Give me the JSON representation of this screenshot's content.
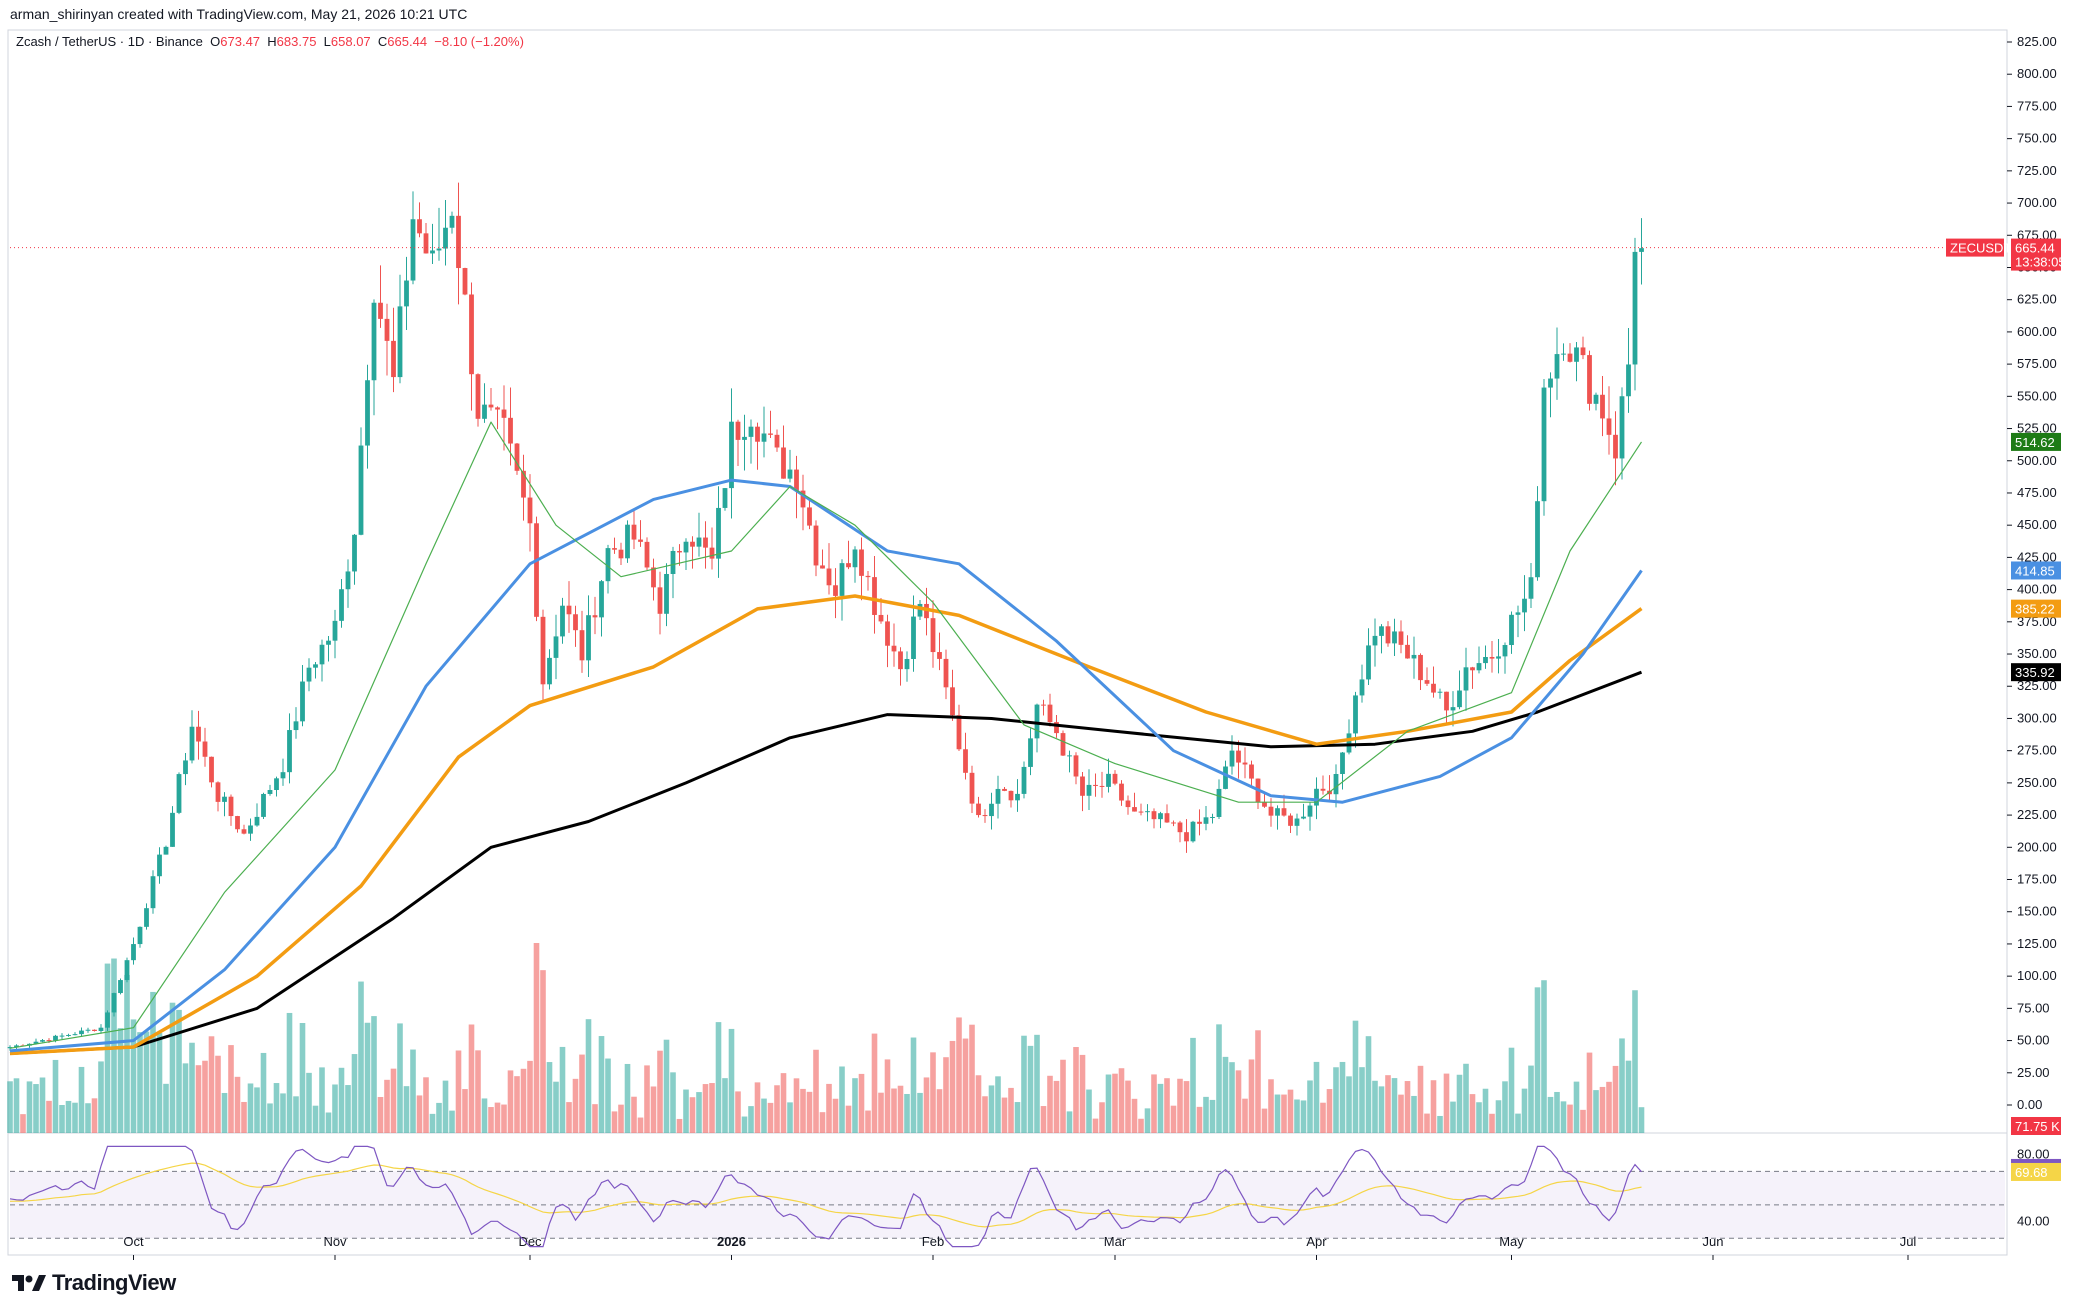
{
  "header": {
    "credit": "arman_shirinyan created with TradingView.com, May 21, 2026 10:21 UTC"
  },
  "legend": {
    "symbol": "Zcash / TetherUS · 1D · Binance",
    "open_label": "O",
    "open": "673.47",
    "high_label": "H",
    "high": "683.75",
    "low_label": "L",
    "low": "658.07",
    "close_label": "C",
    "close": "665.44",
    "change": "−8.10 (−1.20%)"
  },
  "footer": {
    "brand": "TradingView"
  },
  "colors": {
    "up": "#26a69a",
    "down": "#ef5350",
    "ma20": "#4caf50",
    "ma50": "#4a90e2",
    "ma100": "#f39c12",
    "ma200": "#000000",
    "rsi": "#7e57c2",
    "rsi_ma": "#f5d547"
  },
  "tags": [
    {
      "label": "ZECUSDT",
      "value": "665.44",
      "sub": "13:38:05",
      "color": "#f23645"
    },
    {
      "value": "514.62",
      "color": "#1e7b16"
    },
    {
      "value": "414.85",
      "color": "#4a90e2"
    },
    {
      "value": "385.22",
      "color": "#f39c12"
    },
    {
      "value": "335.92",
      "color": "#000000"
    },
    {
      "value": "71.75 K",
      "color": "#f23645"
    },
    {
      "value": "72.08",
      "color": "#7e57c2"
    },
    {
      "value": "69.68",
      "color": "#f5d547"
    }
  ],
  "chart_data": {
    "type": "candlestick",
    "title": "Zcash / TetherUS · 1D · Binance",
    "y_ticks": [
      "825.00",
      "800.00",
      "775.00",
      "750.00",
      "725.00",
      "700.00",
      "675.00",
      "650.00",
      "625.00",
      "600.00",
      "575.00",
      "550.00",
      "525.00",
      "500.00",
      "475.00",
      "450.00",
      "425.00",
      "400.00",
      "375.00",
      "350.00",
      "325.00",
      "300.00",
      "275.00",
      "250.00",
      "225.00",
      "200.00",
      "175.00",
      "150.00",
      "125.00",
      "100.00",
      "75.00",
      "50.00",
      "25.00",
      "0.00"
    ],
    "ylim": [
      0,
      825
    ],
    "rsi_ticks": [
      "80.00",
      "40.00"
    ],
    "x_ticks": [
      {
        "label": "Oct",
        "date": "2025-10-01"
      },
      {
        "label": "Nov",
        "date": "2025-11-01"
      },
      {
        "label": "Dec",
        "date": "2025-12-01"
      },
      {
        "label": "2026",
        "date": "2026-01-01",
        "bold": true
      },
      {
        "label": "Feb",
        "date": "2026-02-01"
      },
      {
        "label": "Mar",
        "date": "2026-03-01"
      },
      {
        "label": "Apr",
        "date": "2026-04-01"
      },
      {
        "label": "May",
        "date": "2026-05-01"
      },
      {
        "label": "Jun",
        "date": "2026-06-01"
      },
      {
        "label": "Jul",
        "date": "2026-07-01"
      }
    ],
    "x_start": "2025-09-12",
    "key_closes": [
      [
        "2025-09-12",
        45
      ],
      [
        "2025-09-26",
        60
      ],
      [
        "2025-10-01",
        125
      ],
      [
        "2025-10-06",
        205
      ],
      [
        "2025-10-10",
        295
      ],
      [
        "2025-10-14",
        240
      ],
      [
        "2025-10-18",
        210
      ],
      [
        "2025-10-24",
        265
      ],
      [
        "2025-10-28",
        340
      ],
      [
        "2025-11-01",
        370
      ],
      [
        "2025-11-04",
        450
      ],
      [
        "2025-11-07",
        640
      ],
      [
        "2025-11-10",
        560
      ],
      [
        "2025-11-13",
        690
      ],
      [
        "2025-11-16",
        650
      ],
      [
        "2025-11-19",
        700
      ],
      [
        "2025-11-23",
        540
      ],
      [
        "2025-11-27",
        520
      ],
      [
        "2025-12-01",
        450
      ],
      [
        "2025-12-03",
        330
      ],
      [
        "2025-12-06",
        390
      ],
      [
        "2025-12-09",
        350
      ],
      [
        "2025-12-13",
        430
      ],
      [
        "2025-12-17",
        440
      ],
      [
        "2025-12-21",
        390
      ],
      [
        "2025-12-25",
        450
      ],
      [
        "2025-12-29",
        420
      ],
      [
        "2026-01-01",
        520
      ],
      [
        "2026-01-04",
        540
      ],
      [
        "2026-01-08",
        500
      ],
      [
        "2026-01-11",
        490
      ],
      [
        "2026-01-14",
        430
      ],
      [
        "2026-01-17",
        400
      ],
      [
        "2026-01-20",
        440
      ],
      [
        "2026-01-23",
        390
      ],
      [
        "2026-01-27",
        340
      ],
      [
        "2026-01-30",
        390
      ],
      [
        "2026-02-03",
        320
      ],
      [
        "2026-02-06",
        260
      ],
      [
        "2026-02-08",
        220
      ],
      [
        "2026-02-11",
        250
      ],
      [
        "2026-02-14",
        240
      ],
      [
        "2026-02-17",
        310
      ],
      [
        "2026-02-20",
        290
      ],
      [
        "2026-02-24",
        240
      ],
      [
        "2026-02-28",
        250
      ],
      [
        "2026-03-04",
        225
      ],
      [
        "2026-03-08",
        220
      ],
      [
        "2026-03-12",
        210
      ],
      [
        "2026-03-16",
        225
      ],
      [
        "2026-03-19",
        275
      ],
      [
        "2026-03-22",
        250
      ],
      [
        "2026-03-25",
        225
      ],
      [
        "2026-03-29",
        220
      ],
      [
        "2026-04-01",
        245
      ],
      [
        "2026-04-04",
        250
      ],
      [
        "2026-04-07",
        320
      ],
      [
        "2026-04-10",
        370
      ],
      [
        "2026-04-14",
        355
      ],
      [
        "2026-04-18",
        330
      ],
      [
        "2026-04-21",
        305
      ],
      [
        "2026-04-24",
        340
      ],
      [
        "2026-04-28",
        350
      ],
      [
        "2026-05-01",
        375
      ],
      [
        "2026-05-04",
        400
      ],
      [
        "2026-05-06",
        560
      ],
      [
        "2026-05-09",
        600
      ],
      [
        "2026-05-12",
        570
      ],
      [
        "2026-05-15",
        540
      ],
      [
        "2026-05-17",
        510
      ],
      [
        "2026-05-19",
        575
      ],
      [
        "2026-05-20",
        673
      ],
      [
        "2026-05-21",
        665
      ]
    ],
    "ma20_path": [
      [
        "2025-09-12",
        44
      ],
      [
        "2025-10-01",
        60
      ],
      [
        "2025-10-15",
        165
      ],
      [
        "2025-11-01",
        260
      ],
      [
        "2025-11-15",
        420
      ],
      [
        "2025-11-25",
        530
      ],
      [
        "2025-12-05",
        450
      ],
      [
        "2025-12-15",
        410
      ],
      [
        "2026-01-01",
        430
      ],
      [
        "2026-01-10",
        480
      ],
      [
        "2026-01-20",
        450
      ],
      [
        "2026-02-01",
        390
      ],
      [
        "2026-02-15",
        295
      ],
      [
        "2026-03-01",
        265
      ],
      [
        "2026-03-20",
        235
      ],
      [
        "2026-04-01",
        235
      ],
      [
        "2026-04-15",
        290
      ],
      [
        "2026-05-01",
        320
      ],
      [
        "2026-05-10",
        430
      ],
      [
        "2026-05-21",
        514.62
      ]
    ],
    "ma50_path": [
      [
        "2025-09-12",
        42
      ],
      [
        "2025-10-01",
        50
      ],
      [
        "2025-10-15",
        105
      ],
      [
        "2025-11-01",
        200
      ],
      [
        "2025-11-15",
        325
      ],
      [
        "2025-12-01",
        420
      ],
      [
        "2025-12-20",
        470
      ],
      [
        "2026-01-01",
        485
      ],
      [
        "2026-01-10",
        480
      ],
      [
        "2026-01-25",
        430
      ],
      [
        "2026-02-05",
        420
      ],
      [
        "2026-02-20",
        360
      ],
      [
        "2026-03-10",
        275
      ],
      [
        "2026-03-25",
        240
      ],
      [
        "2026-04-05",
        235
      ],
      [
        "2026-04-20",
        255
      ],
      [
        "2026-05-01",
        285
      ],
      [
        "2026-05-12",
        350
      ],
      [
        "2026-05-21",
        414.85
      ]
    ],
    "ma100_path": [
      [
        "2025-09-12",
        40
      ],
      [
        "2025-10-01",
        45
      ],
      [
        "2025-10-20",
        100
      ],
      [
        "2025-11-05",
        170
      ],
      [
        "2025-11-20",
        270
      ],
      [
        "2025-12-01",
        310
      ],
      [
        "2025-12-20",
        340
      ],
      [
        "2026-01-05",
        385
      ],
      [
        "2026-01-20",
        395
      ],
      [
        "2026-02-05",
        380
      ],
      [
        "2026-02-25",
        340
      ],
      [
        "2026-03-15",
        305
      ],
      [
        "2026-04-01",
        280
      ],
      [
        "2026-04-15",
        290
      ],
      [
        "2026-05-01",
        305
      ],
      [
        "2026-05-10",
        345
      ],
      [
        "2026-05-21",
        385.22
      ]
    ],
    "ma200_path": [
      [
        "2025-09-12",
        40
      ],
      [
        "2025-10-01",
        45
      ],
      [
        "2025-10-20",
        75
      ],
      [
        "2025-11-10",
        145
      ],
      [
        "2025-11-25",
        200
      ],
      [
        "2025-12-10",
        220
      ],
      [
        "2025-12-25",
        250
      ],
      [
        "2026-01-10",
        285
      ],
      [
        "2026-01-25",
        303
      ],
      [
        "2026-02-10",
        300
      ],
      [
        "2026-03-01",
        290
      ],
      [
        "2026-03-25",
        278
      ],
      [
        "2026-04-10",
        280
      ],
      [
        "2026-04-25",
        290
      ],
      [
        "2026-05-05",
        305
      ],
      [
        "2026-05-21",
        335.92
      ]
    ],
    "last_price": 665.44
  }
}
